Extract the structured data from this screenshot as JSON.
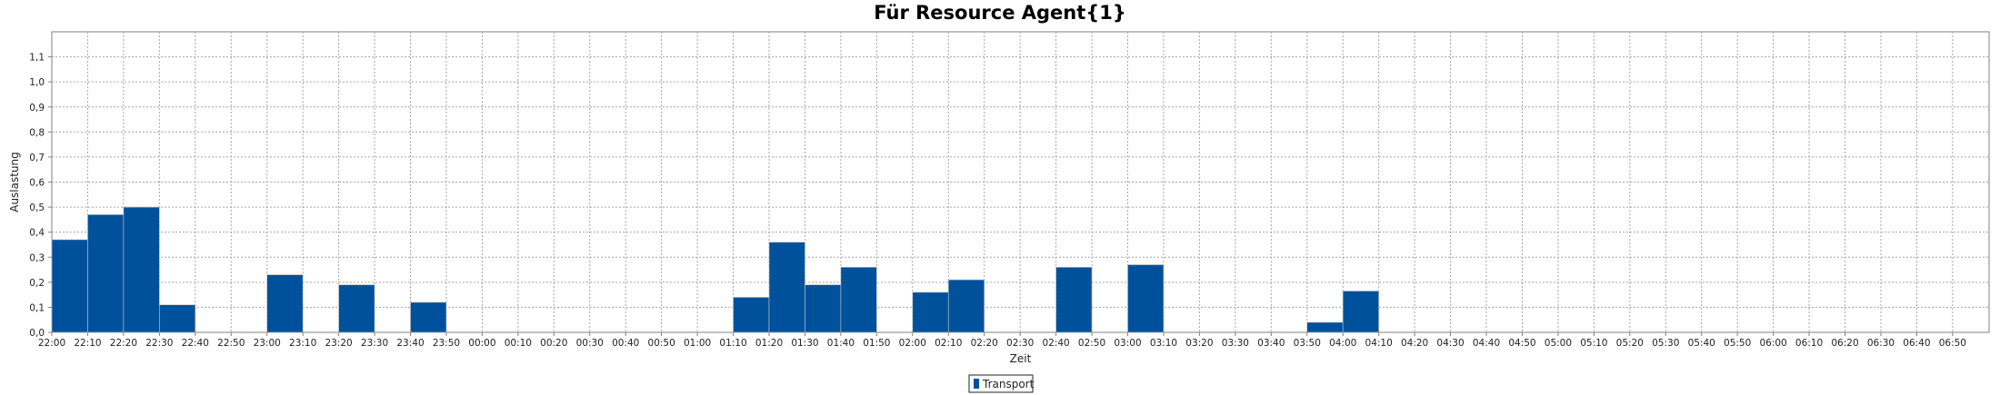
{
  "chart_data": {
    "type": "bar",
    "title": "Für Resource Agent{1}",
    "xlabel": "Zeit",
    "ylabel": "Auslastung",
    "ylim": [
      0,
      1.2
    ],
    "y_ticks": [
      "0,0",
      "0,1",
      "0,2",
      "0,3",
      "0,4",
      "0,5",
      "0,6",
      "0,7",
      "0,8",
      "0,9",
      "1,0",
      "1,1"
    ],
    "grid": true,
    "legend_position": "bottom-center",
    "colors": {
      "bar": "#00519C",
      "grid": "#a6a6a6",
      "axis": "#808080"
    },
    "categories": [
      "22:00",
      "22:10",
      "22:20",
      "22:30",
      "22:40",
      "22:50",
      "23:00",
      "23:10",
      "23:20",
      "23:30",
      "23:40",
      "23:50",
      "00:00",
      "00:10",
      "00:20",
      "00:30",
      "00:40",
      "00:50",
      "01:00",
      "01:10",
      "01:20",
      "01:30",
      "01:40",
      "01:50",
      "02:00",
      "02:10",
      "02:20",
      "02:30",
      "02:40",
      "02:50",
      "03:00",
      "03:10",
      "03:20",
      "03:30",
      "03:40",
      "03:50",
      "04:00",
      "04:10",
      "04:20",
      "04:30",
      "04:40",
      "04:50",
      "05:00",
      "05:10",
      "05:20",
      "05:30",
      "05:40",
      "05:50",
      "06:00",
      "06:10",
      "06:20",
      "06:30",
      "06:40",
      "06:50"
    ],
    "series": [
      {
        "name": "Transport",
        "values": [
          0.37,
          0.47,
          0.5,
          0.11,
          0,
          0,
          0.23,
          0,
          0.19,
          0,
          0.12,
          0,
          0,
          0,
          0,
          0,
          0,
          0,
          0,
          0.14,
          0.36,
          0.19,
          0.26,
          0,
          0.16,
          0.21,
          0,
          0,
          0.26,
          0,
          0.27,
          0,
          0,
          0,
          0,
          0.04,
          0.165,
          0,
          0,
          0,
          0,
          0,
          0,
          0,
          0,
          0,
          0,
          0,
          0,
          0,
          0,
          0,
          0,
          0
        ]
      }
    ]
  }
}
